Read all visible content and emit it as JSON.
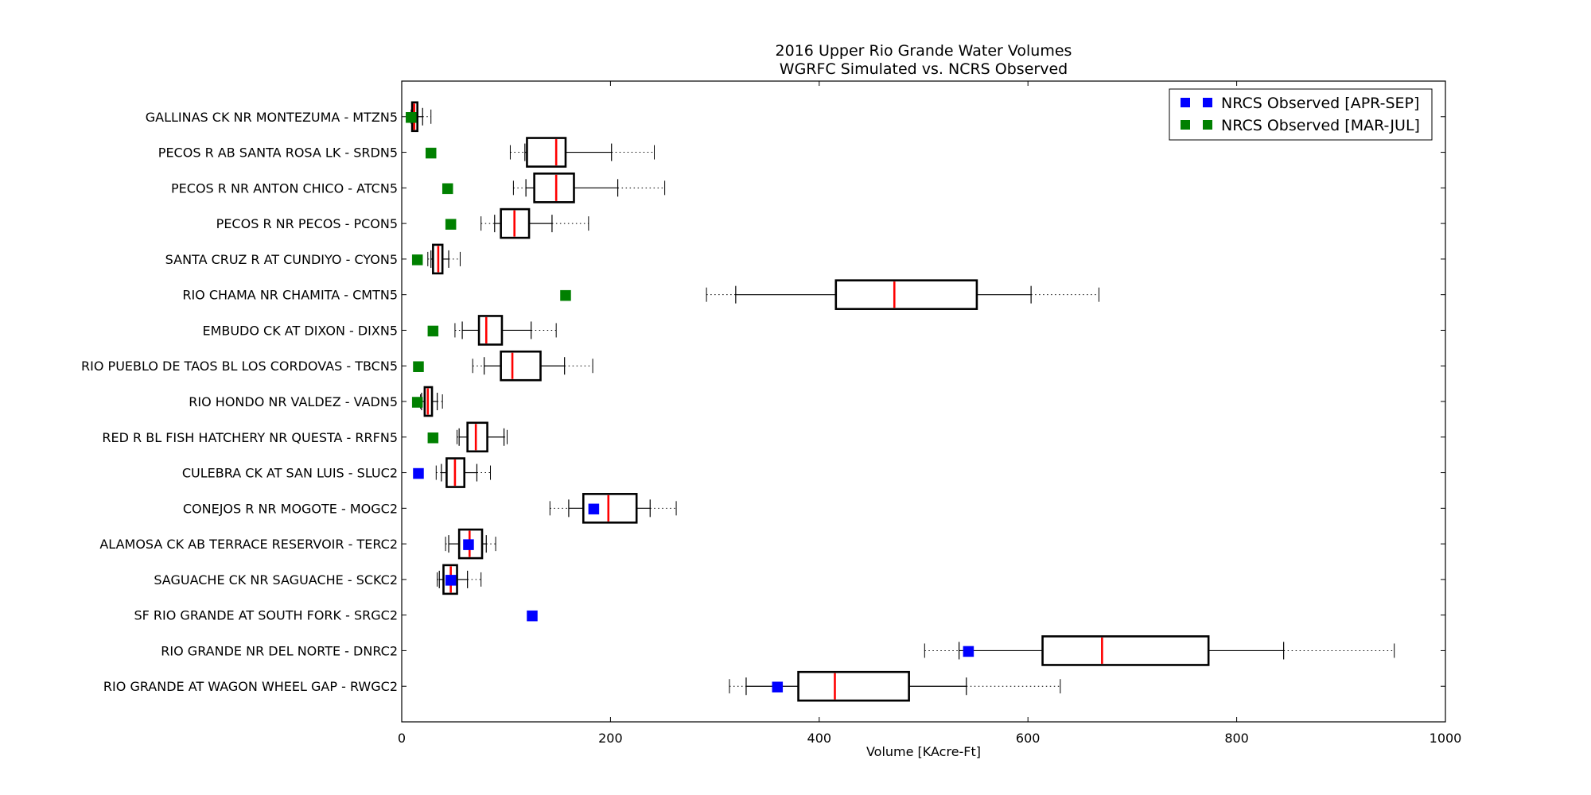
{
  "chart_data": {
    "type": "boxplot",
    "title": "2016 Upper Rio Grande Water Volumes",
    "subtitle": "WGRFC Simulated vs. NCRS Observed",
    "xlabel": "Volume [KAcre-Ft]",
    "ylabel": "",
    "xlim": [
      0,
      1000
    ],
    "xticks": [
      "0",
      "200",
      "400",
      "600",
      "800",
      "1000"
    ],
    "grid": false,
    "legend_position": "top-right",
    "legend": [
      {
        "name": "NRCS Observed [APR-SEP]",
        "color": "#0000ff"
      },
      {
        "name": "NRCS Observed [MAR-JUL]",
        "color": "#008000"
      }
    ],
    "stations": [
      {
        "label": "GALLINAS CK NR MONTEZUMA  - MTZN5",
        "min": 9,
        "wlo": 10,
        "q1": 10,
        "median": 12,
        "q3": 15,
        "whi": 20,
        "max": 28,
        "obs": 9,
        "obs_type": "MAR-JUL"
      },
      {
        "label": "PECOS R AB SANTA ROSA LK - SRDN5",
        "min": 104,
        "wlo": 118,
        "q1": 120,
        "median": 148,
        "q3": 157,
        "whi": 201,
        "max": 242,
        "obs": 28,
        "obs_type": "MAR-JUL"
      },
      {
        "label": "PECOS R NR ANTON CHICO - ATCN5",
        "min": 107,
        "wlo": 119,
        "q1": 127,
        "median": 148,
        "q3": 165,
        "whi": 207,
        "max": 252,
        "obs": 44,
        "obs_type": "MAR-JUL"
      },
      {
        "label": "PECOS R NR PECOS - PCON5",
        "min": 76,
        "wlo": 89,
        "q1": 95,
        "median": 108,
        "q3": 122,
        "whi": 144,
        "max": 179,
        "obs": 47,
        "obs_type": "MAR-JUL"
      },
      {
        "label": "SANTA CRUZ R AT CUNDIYO - CYON5",
        "min": 25,
        "wlo": 28,
        "q1": 30,
        "median": 35,
        "q3": 39,
        "whi": 45,
        "max": 56,
        "obs": 15,
        "obs_type": "MAR-JUL"
      },
      {
        "label": "RIO CHAMA NR CHAMITA  - CMTN5",
        "min": 292,
        "wlo": 320,
        "q1": 416,
        "median": 472,
        "q3": 551,
        "whi": 603,
        "max": 668,
        "obs": 157,
        "obs_type": "MAR-JUL"
      },
      {
        "label": "EMBUDO CK AT DIXON - DIXN5",
        "min": 51,
        "wlo": 58,
        "q1": 74,
        "median": 81,
        "q3": 96,
        "whi": 124,
        "max": 148,
        "obs": 30,
        "obs_type": "MAR-JUL"
      },
      {
        "label": "RIO PUEBLO DE TAOS BL LOS CORDOVAS - TBCN5",
        "min": 68,
        "wlo": 79,
        "q1": 95,
        "median": 106,
        "q3": 133,
        "whi": 156,
        "max": 183,
        "obs": 16,
        "obs_type": "MAR-JUL"
      },
      {
        "label": "RIO HONDO NR VALDEZ - VADN5",
        "min": 18,
        "wlo": 19,
        "q1": 22,
        "median": 25,
        "q3": 29,
        "whi": 34,
        "max": 39,
        "obs": 15,
        "obs_type": "MAR-JUL"
      },
      {
        "label": "RED R BL FISH HATCHERY NR QUESTA - RRFN5",
        "min": 53,
        "wlo": 55,
        "q1": 63,
        "median": 71,
        "q3": 82,
        "whi": 98,
        "max": 101,
        "obs": 30,
        "obs_type": "MAR-JUL"
      },
      {
        "label": "CULEBRA CK AT SAN LUIS - SLUC2",
        "min": 33,
        "wlo": 38,
        "q1": 43,
        "median": 51,
        "q3": 60,
        "whi": 72,
        "max": 85,
        "obs": 16,
        "obs_type": "APR-SEP"
      },
      {
        "label": "CONEJOS R NR MOGOTE - MOGC2",
        "min": 142,
        "wlo": 160,
        "q1": 174,
        "median": 198,
        "q3": 225,
        "whi": 238,
        "max": 263,
        "obs": 184,
        "obs_type": "APR-SEP"
      },
      {
        "label": "ALAMOSA CK AB TERRACE RESERVOIR  - TERC2",
        "min": 42,
        "wlo": 45,
        "q1": 55,
        "median": 65,
        "q3": 77,
        "whi": 81,
        "max": 90,
        "obs": 64,
        "obs_type": "APR-SEP"
      },
      {
        "label": "SAGUACHE CK NR SAGUACHE  - SCKC2",
        "min": 34,
        "wlo": 36,
        "q1": 40,
        "median": 47,
        "q3": 53,
        "whi": 63,
        "max": 76,
        "obs": 47,
        "obs_type": "APR-SEP"
      },
      {
        "label": "SF RIO GRANDE AT SOUTH FORK  - SRGC2",
        "obs": 125,
        "obs_type": "APR-SEP"
      },
      {
        "label": "RIO GRANDE NR DEL NORTE - DNRC2",
        "min": 501,
        "wlo": 534,
        "q1": 614,
        "median": 671,
        "q3": 773,
        "whi": 845,
        "max": 951,
        "obs": 543,
        "obs_type": "APR-SEP"
      },
      {
        "label": "RIO GRANDE AT WAGON WHEEL GAP - RWGC2",
        "min": 314,
        "wlo": 330,
        "q1": 380,
        "median": 415,
        "q3": 486,
        "whi": 541,
        "max": 631,
        "obs": 360,
        "obs_type": "APR-SEP"
      }
    ]
  }
}
